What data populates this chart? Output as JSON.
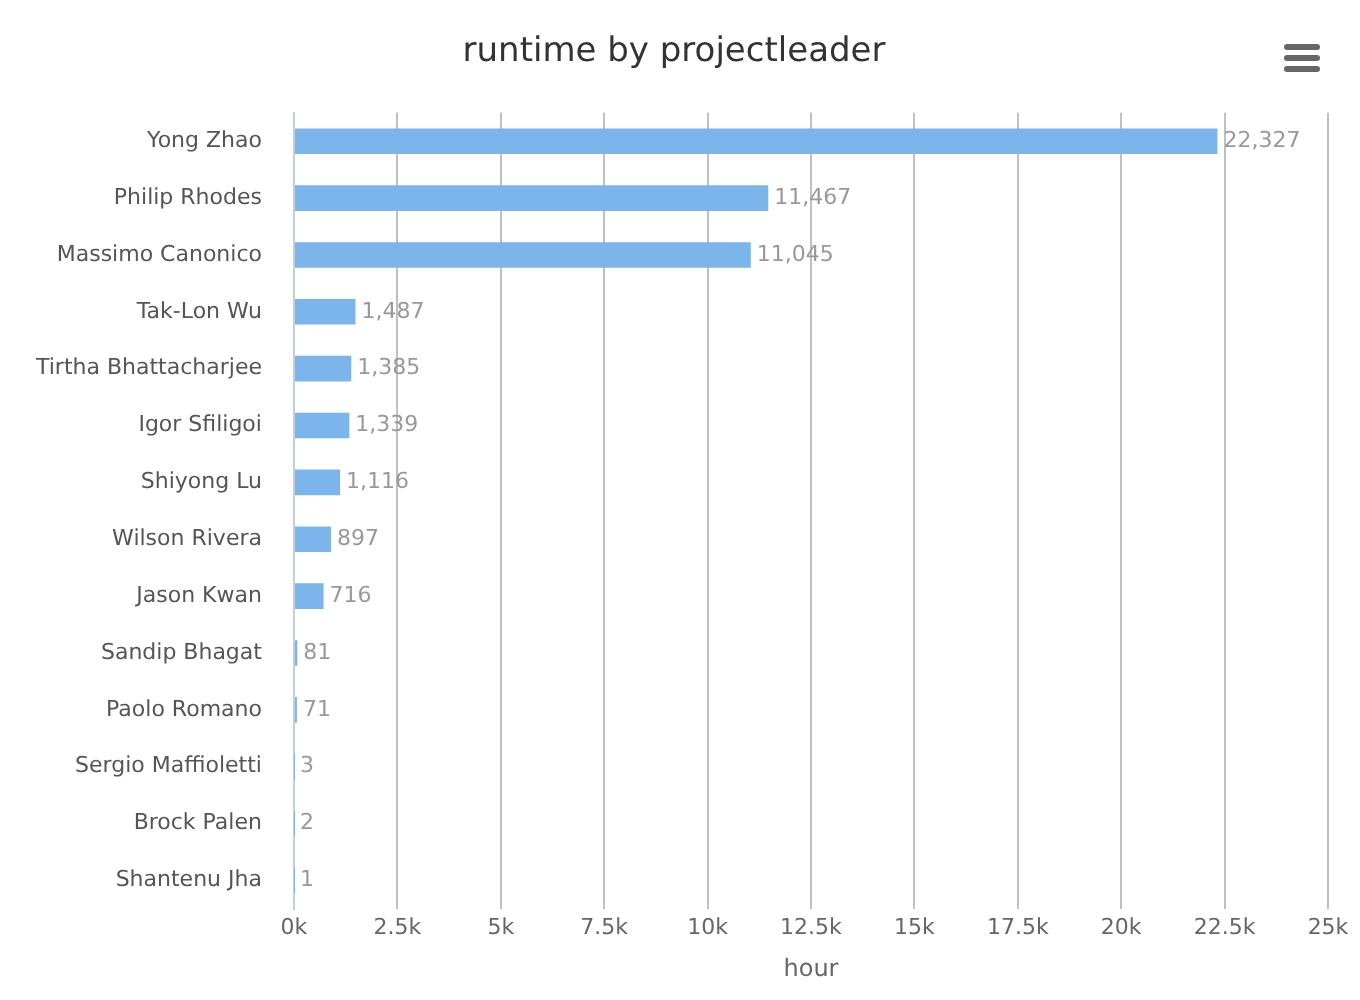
{
  "chart_data": {
    "type": "bar",
    "orientation": "horizontal",
    "title": "runtime by projectleader",
    "xlabel": "hour",
    "categories": [
      "Yong Zhao",
      "Philip Rhodes",
      "Massimo Canonico",
      "Tak-Lon Wu",
      "Tirtha Bhattacharjee",
      "Igor Sfiligoi",
      "Shiyong Lu",
      "Wilson Rivera",
      "Jason Kwan",
      "Sandip Bhagat",
      "Paolo Romano",
      "Sergio Maffioletti",
      "Brock Palen",
      "Shantenu Jha"
    ],
    "values": [
      22327,
      11467,
      11045,
      1487,
      1385,
      1339,
      1116,
      897,
      716,
      81,
      71,
      3,
      2,
      1
    ],
    "value_labels": [
      "22,327",
      "11,467",
      "11,045",
      "1,487",
      "1,385",
      "1,339",
      "1,116",
      "897",
      "716",
      "81",
      "71",
      "3",
      "2",
      "1"
    ],
    "color": "#7cb5ec",
    "xlim": [
      0,
      25000
    ],
    "xticks": [
      {
        "value": 0,
        "label": "0k"
      },
      {
        "value": 2500,
        "label": "2.5k"
      },
      {
        "value": 5000,
        "label": "5k"
      },
      {
        "value": 7500,
        "label": "7.5k"
      },
      {
        "value": 10000,
        "label": "10k"
      },
      {
        "value": 12500,
        "label": "12.5k"
      },
      {
        "value": 15000,
        "label": "15k"
      },
      {
        "value": 17500,
        "label": "17.5k"
      },
      {
        "value": 20000,
        "label": "20k"
      },
      {
        "value": 22500,
        "label": "22.5k"
      },
      {
        "value": 25000,
        "label": "25k"
      }
    ],
    "grid": "x",
    "legend": false
  }
}
